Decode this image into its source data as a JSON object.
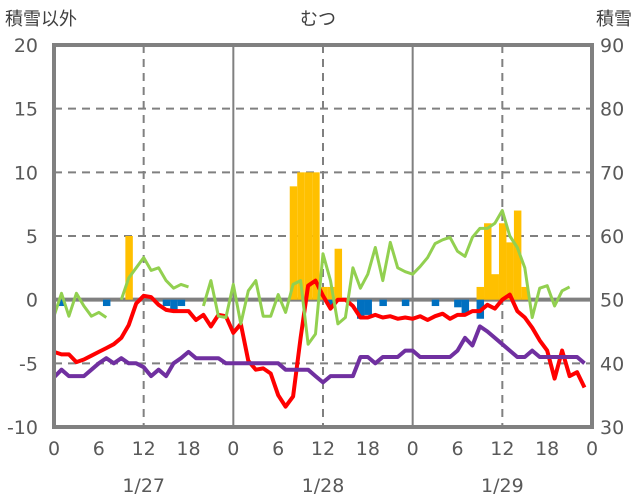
{
  "chart_data": {
    "type": "bar+line",
    "title": "むつ",
    "ylabel_left": "積雪以外",
    "ylabel_right": "積雪",
    "ylim_left": [
      -10,
      20
    ],
    "ylim_right": [
      30,
      90
    ],
    "yticks_left": [
      "20",
      "15",
      "10",
      "5",
      "0",
      "-5",
      "-10"
    ],
    "yticks_left_values": [
      20,
      15,
      10,
      5,
      0,
      -5,
      -10
    ],
    "yticks_right": [
      "90",
      "80",
      "70",
      "60",
      "50",
      "40",
      "30"
    ],
    "yticks_right_values": [
      90,
      80,
      70,
      60,
      50,
      40,
      30
    ],
    "xlim_hours": [
      0,
      72
    ],
    "xticks": [
      "0",
      "6",
      "12",
      "18",
      "0",
      "6",
      "12",
      "18",
      "0",
      "6",
      "12",
      "18",
      "0"
    ],
    "xticks_hours": [
      0,
      6,
      12,
      18,
      24,
      30,
      36,
      42,
      48,
      54,
      60,
      66,
      72
    ],
    "date_labels": [
      "1/27",
      "1/28",
      "1/29"
    ],
    "date_label_hours": [
      12,
      36,
      60
    ],
    "grid": true,
    "colors": {
      "orange_bar": "#FFC000",
      "blue_bar": "#0070C0",
      "red_line": "#FF0000",
      "purple_line": "#7030A0",
      "green_line": "#92D050",
      "frame": "#808080"
    },
    "bars_positive": {
      "axis": "left",
      "color": "#FFC000",
      "points": [
        [
          10,
          5
        ],
        [
          32,
          8.9
        ],
        [
          33,
          10
        ],
        [
          34,
          10
        ],
        [
          35,
          10
        ],
        [
          36,
          1
        ],
        [
          37,
          1
        ],
        [
          38,
          4
        ],
        [
          57,
          1
        ],
        [
          58,
          6
        ],
        [
          59,
          2
        ],
        [
          60,
          6
        ],
        [
          61,
          4.5
        ],
        [
          62,
          7
        ],
        [
          63,
          1
        ]
      ]
    },
    "bars_negative": {
      "axis": "left",
      "color": "#0070C0",
      "points": [
        [
          1,
          -0.5
        ],
        [
          7,
          -0.5
        ],
        [
          15,
          -0.5
        ],
        [
          16,
          -1
        ],
        [
          17,
          -0.5
        ],
        [
          37,
          -0.5
        ],
        [
          41,
          -1.5
        ],
        [
          42,
          -1.2
        ],
        [
          44,
          -0.5
        ],
        [
          47,
          -0.5
        ],
        [
          51,
          -0.5
        ],
        [
          54,
          -0.6
        ],
        [
          55,
          -1.1
        ],
        [
          57,
          -1.5
        ]
      ]
    },
    "series": [
      {
        "axis": "left",
        "color": "#FF0000",
        "values": [
          -4.1,
          -4.3,
          -4.3,
          -4.9,
          -4.7,
          -4.4,
          -4.1,
          -3.8,
          -3.5,
          -3.0,
          -2.0,
          -0.3,
          0.3,
          0.2,
          -0.4,
          -0.8,
          -0.9,
          -0.9,
          -0.9,
          -1.6,
          -1.2,
          -2.1,
          -1.2,
          -1.3,
          -2.6,
          -1.9,
          -4.8,
          -5.5,
          -5.4,
          -5.8,
          -7.5,
          -8.4,
          -7.6,
          -3.0,
          1.1,
          1.5,
          0.3,
          -0.7,
          0,
          0,
          -0.5,
          -1.4,
          -1.4,
          -1.2,
          -1.4,
          -1.3,
          -1.5,
          -1.4,
          -1.5,
          -1.3,
          -1.6,
          -1.3,
          -1.1,
          -1.5,
          -1.2,
          -1.2,
          -0.9,
          -0.9,
          -0.4,
          -0.7,
          0,
          0.4,
          -0.9,
          -1.4,
          -2.2,
          -3.2,
          -4.0,
          -6.2,
          -4.0,
          -6.0,
          -5.7,
          -6.9
        ]
      },
      {
        "axis": "left",
        "color": "#7030A0",
        "values": [
          -6.1,
          -5.5,
          -6,
          -6,
          -6,
          -5.5,
          -5,
          -4.6,
          -5,
          -4.6,
          -5,
          -5,
          -5.3,
          -6,
          -5.5,
          -6,
          -5,
          -4.6,
          -4.1,
          -4.6,
          -4.6,
          -4.6,
          -4.6,
          -5,
          -5,
          -5,
          -5,
          -5,
          -5,
          -5,
          -5,
          -5.5,
          -5.5,
          -5.5,
          -5.5,
          -6,
          -6.5,
          -6,
          -6,
          -6,
          -6,
          -4.5,
          -4.5,
          -5,
          -4.5,
          -4.5,
          -4.5,
          -4,
          -4,
          -4.5,
          -4.5,
          -4.5,
          -4.5,
          -4.5,
          -4,
          -3,
          -3.6,
          -2.1,
          -2.5,
          -3,
          -3.5,
          -4,
          -4.5,
          -4.5,
          -4,
          -4.5,
          -4.5,
          -4.5,
          -4.5,
          -4.5,
          -4.5,
          -5
        ]
      },
      {
        "axis": "right",
        "color": "#92D050",
        "values": [
          47.4,
          51,
          47.4,
          51,
          49,
          47.4,
          48,
          47.2,
          null,
          50,
          53.4,
          55,
          56.6,
          54.6,
          55,
          53,
          51.8,
          52.4,
          52,
          null,
          49,
          53,
          47.4,
          47.2,
          52.4,
          46.2,
          51.4,
          53,
          47.4,
          47.4,
          50.8,
          48,
          52.4,
          53,
          43,
          44.6,
          57.2,
          53,
          46.2,
          47.2,
          55,
          51.8,
          54,
          58.2,
          53,
          59,
          55,
          54.4,
          54,
          55.2,
          56.6,
          58.8,
          59.4,
          59.8,
          57.6,
          56.8,
          59.8,
          61.2,
          61.2,
          62,
          64,
          60,
          58.2,
          55,
          47.2,
          51.8,
          52.2,
          49,
          51.4,
          52
        ]
      }
    ]
  }
}
